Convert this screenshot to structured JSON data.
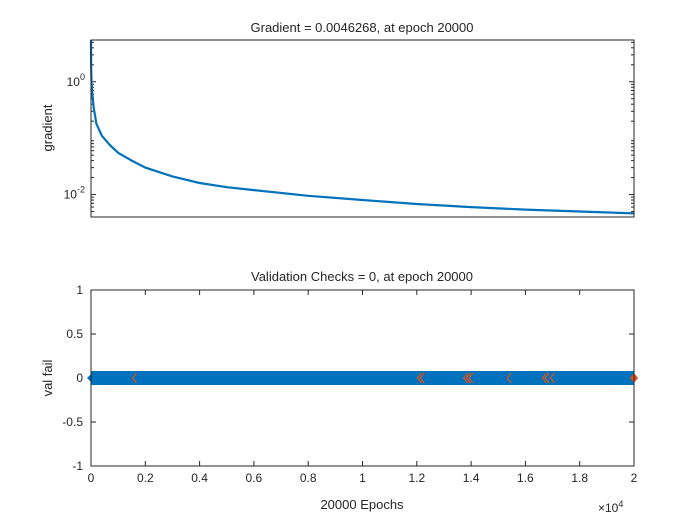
{
  "chart_data": [
    {
      "type": "line",
      "title": "Gradient = 0.0046268, at epoch 20000",
      "xlabel": "",
      "ylabel": "gradient",
      "yscale": "log",
      "xlim": [
        0,
        20000
      ],
      "ylim": [
        0.004,
        5.5
      ],
      "ytick_labels": [
        "10^0",
        "10^-2"
      ],
      "ytick_values": [
        1,
        0.01
      ],
      "x_ticks_shown": false,
      "grid": false,
      "series_color": "#0072BD",
      "x": [
        0,
        5,
        20,
        50,
        100,
        200,
        400,
        700,
        1000,
        1500,
        2000,
        3000,
        4000,
        5000,
        6000,
        8000,
        10000,
        12000,
        14000,
        16000,
        18000,
        20000
      ],
      "y": [
        5.5,
        2.0,
        1.0,
        0.6,
        0.35,
        0.18,
        0.11,
        0.075,
        0.055,
        0.04,
        0.03,
        0.021,
        0.016,
        0.0135,
        0.012,
        0.0095,
        0.008,
        0.0068,
        0.006,
        0.0054,
        0.005,
        0.0046268
      ]
    },
    {
      "type": "scatter",
      "title": "Validation Checks = 0, at epoch 20000",
      "xlabel": "20000 Epochs",
      "ylabel": "val fail",
      "xlim": [
        0,
        20000
      ],
      "ylim": [
        -1,
        1
      ],
      "xtick_values": [
        0,
        2000,
        4000,
        6000,
        8000,
        10000,
        12000,
        14000,
        16000,
        18000,
        20000
      ],
      "xtick_labels": [
        "0",
        "0.2",
        "0.4",
        "0.6",
        "0.8",
        "1",
        "1.2",
        "1.4",
        "1.6",
        "1.8",
        "2"
      ],
      "x_exponent_label": "×10^4",
      "ytick_values": [
        1,
        0.5,
        0,
        -0.5,
        -1
      ],
      "ytick_labels": [
        "1",
        "0.5",
        "0",
        "-0.5",
        "-1"
      ],
      "grid": false,
      "series_color": "#0072BD",
      "marker_color": "#D95319",
      "band_x": [
        0,
        20000
      ],
      "band_y": 0,
      "highlight_x": [
        1600,
        12100,
        12200,
        13800,
        13900,
        14000,
        15400,
        16700,
        16800,
        17000,
        20000
      ],
      "highlight_y": 0
    }
  ]
}
